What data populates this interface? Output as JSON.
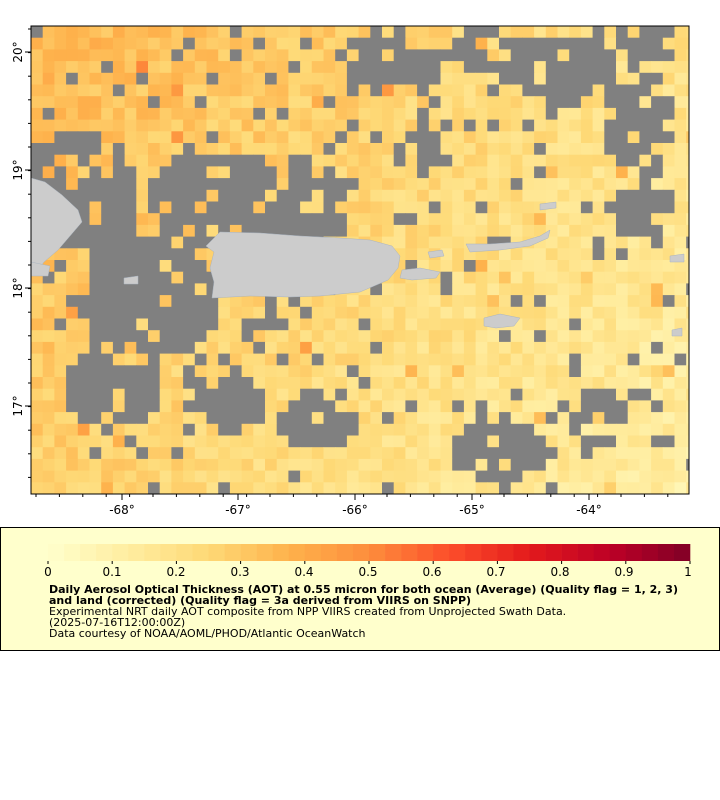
{
  "map": {
    "x_axis_ticks": [
      "-68°",
      "-67°",
      "-66°",
      "-65°",
      "-64°"
    ],
    "y_axis_ticks": [
      "20°",
      "19°",
      "18°",
      "17°"
    ],
    "colors": {
      "no_data": "#808080",
      "land": "#cccccc",
      "background": "#ffffff"
    }
  },
  "legend": {
    "ticks": [
      "0",
      "0.1",
      "0.2",
      "0.3",
      "0.4",
      "0.5",
      "0.6",
      "0.7",
      "0.8",
      "0.9",
      "1"
    ],
    "color_stops": [
      "#ffffcc",
      "#ffeda0",
      "#fed976",
      "#feb24c",
      "#fd8d3c",
      "#fc4e2a",
      "#e31a1c",
      "#bd0026",
      "#800026"
    ],
    "title": "Daily Aerosol Optical Thickness (AOT) at 0.55 micron for both ocean (Average) (Quality flag = 1, 2, 3) and land (corrected) (Quality flag = 3a derived from VIIRS on SNPP)",
    "line1": "Experimental NRT daily AOT composite from NPP VIIRS created from Unprojected Swath Data.",
    "line2": "(2025-07-16T12:00:00Z)",
    "line3": "Data courtesy of NOAA/AOML/PHOD/Atlantic OceanWatch"
  }
}
